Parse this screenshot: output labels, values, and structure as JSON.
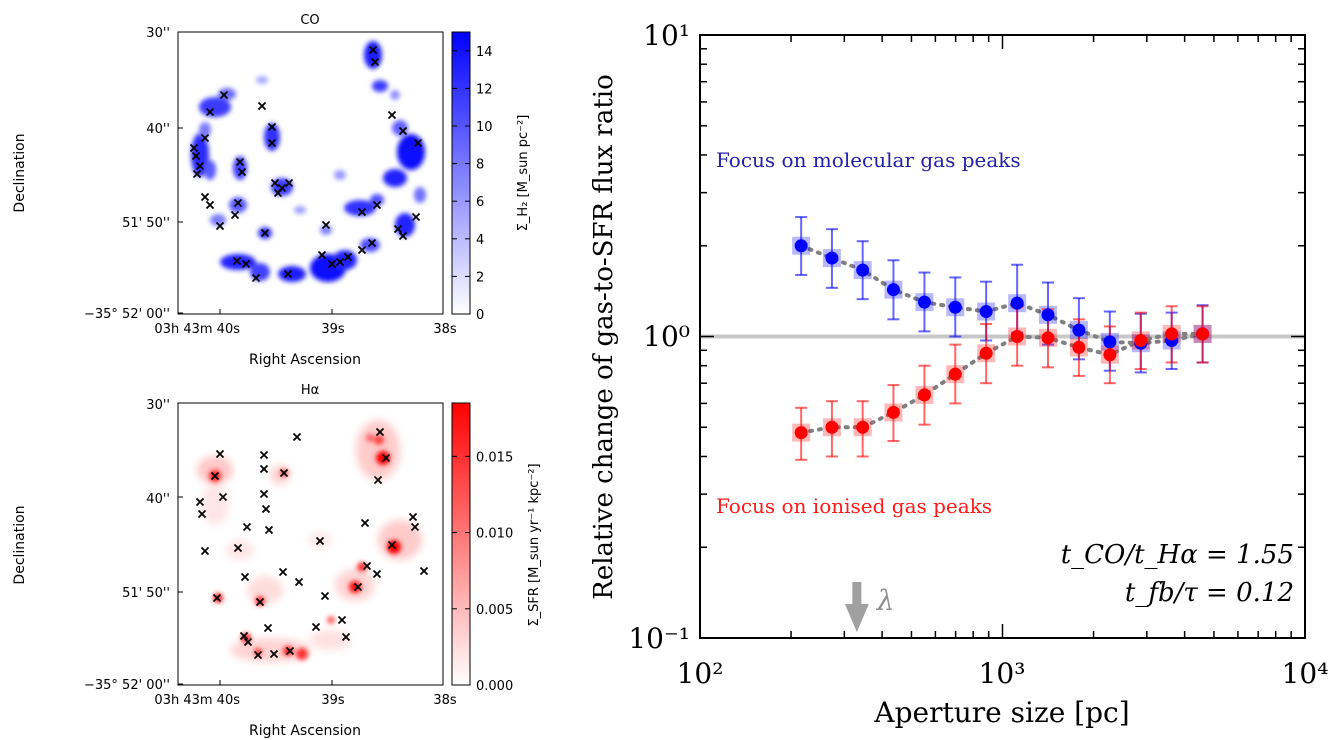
{
  "colors": {
    "co": "#0000ff",
    "halpha": "#ff0000",
    "reference_line": "#c8c8c8",
    "connector": "#808080",
    "arrow": "#a0a0a0"
  },
  "maps": {
    "co": {
      "title": "CO",
      "xlabel": "Right Ascension",
      "ylabel": "Declination",
      "colorbar_label": "Σ_H₂ [M_sun pc⁻²]",
      "colorbar_ticks": [
        "0",
        "2",
        "4",
        "6",
        "8",
        "10",
        "12",
        "14"
      ],
      "colorbar_range": [
        0,
        15
      ],
      "y_ticks": [
        "30''",
        "40''",
        "51' 50''",
        "−35° 52' 00''"
      ],
      "x_ticks": [
        "03h 43m 40s",
        "39s",
        "38s"
      ]
    },
    "halpha": {
      "title": "Hα",
      "xlabel": "Right Ascension",
      "ylabel": "Declination",
      "colorbar_label": "Σ_SFR [M_sun yr⁻¹ kpc⁻²]",
      "colorbar_ticks": [
        "0.000",
        "0.005",
        "0.010",
        "0.015"
      ],
      "colorbar_range": [
        0,
        0.0185
      ],
      "y_ticks": [
        "30''",
        "40''",
        "51' 50''",
        "−35° 52' 00''"
      ],
      "x_ticks": [
        "03h 43m 40s",
        "39s",
        "38s"
      ]
    }
  },
  "chart_data": {
    "type": "scatter",
    "xlabel": "Aperture size [pc]",
    "ylabel": "Relative change of gas-to-SFR flux ratio",
    "xscale": "log",
    "yscale": "log",
    "xlim": [
      100,
      10000
    ],
    "ylim": [
      0.1,
      10
    ],
    "x_tick_labels": [
      "10²",
      "10³",
      "10⁴"
    ],
    "y_tick_labels": [
      "10⁻¹",
      "10⁰",
      "10¹"
    ],
    "reference_line_y": 1.0,
    "series": [
      {
        "name": "Focus on molecular gas peaks",
        "color": "#0000ff",
        "x": [
          216,
          273,
          345,
          436,
          552,
          698,
          883,
          1118,
          1414,
          1789,
          2264,
          2865,
          3625,
          4586
        ],
        "y": [
          2.0,
          1.82,
          1.66,
          1.43,
          1.3,
          1.25,
          1.21,
          1.29,
          1.18,
          1.05,
          0.96,
          0.95,
          0.97,
          1.02
        ],
        "err_low": [
          0.4,
          0.37,
          0.33,
          0.29,
          0.26,
          0.25,
          0.24,
          0.26,
          0.24,
          0.21,
          0.19,
          0.19,
          0.19,
          0.2
        ],
        "err_high": [
          0.49,
          0.45,
          0.41,
          0.36,
          0.33,
          0.32,
          0.31,
          0.44,
          0.33,
          0.29,
          0.25,
          0.24,
          0.23,
          0.25
        ]
      },
      {
        "name": "Focus on ionised gas peaks",
        "color": "#ff0000",
        "x": [
          216,
          273,
          345,
          436,
          552,
          698,
          883,
          1118,
          1414,
          1789,
          2264,
          2865,
          3625,
          4586
        ],
        "y": [
          0.48,
          0.5,
          0.5,
          0.56,
          0.64,
          0.75,
          0.88,
          1.0,
          0.99,
          0.92,
          0.87,
          0.97,
          1.02,
          1.02
        ],
        "err_low": [
          0.09,
          0.1,
          0.1,
          0.11,
          0.13,
          0.15,
          0.18,
          0.2,
          0.2,
          0.18,
          0.17,
          0.19,
          0.2,
          0.2
        ],
        "err_high": [
          0.1,
          0.11,
          0.11,
          0.13,
          0.16,
          0.19,
          0.22,
          0.25,
          0.24,
          0.22,
          0.21,
          0.23,
          0.24,
          0.24
        ]
      }
    ],
    "annotations": {
      "co_label": "Focus on molecular gas peaks",
      "ha_label": "Focus on ionised gas peaks",
      "ratio_text": "t_CO/t_Hα = 1.55",
      "fb_text": "t_fb/τ = 0.12",
      "arrow_label": "λ",
      "arrow_x": 330
    }
  }
}
